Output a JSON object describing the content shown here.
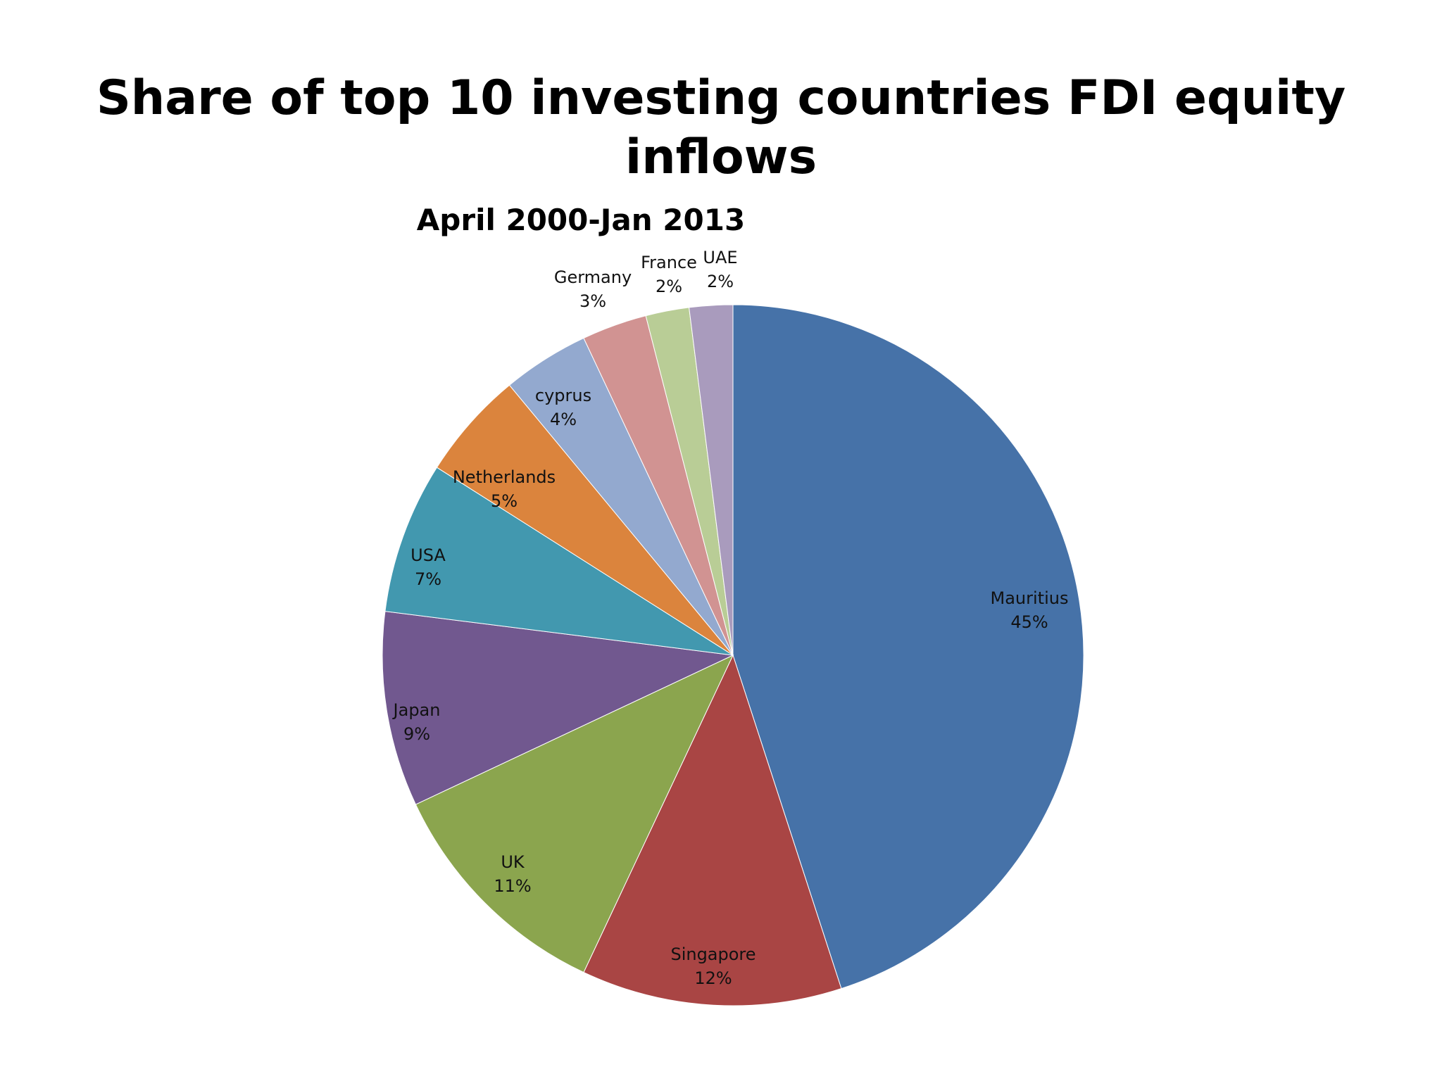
{
  "slide": {
    "title": "Share of top 10 investing countries FDI equity inflows"
  },
  "chart_data": {
    "type": "pie",
    "title": "April  2000-Jan 2013",
    "legend": "none",
    "data_labels": "category name and percentage",
    "start_angle": "12 o'clock, clockwise",
    "slices": [
      {
        "label": "Mauritius",
        "value": 45,
        "display": "45%",
        "color": "#4672A8"
      },
      {
        "label": "Singapore",
        "value": 12,
        "display": "12%",
        "color": "#A94544"
      },
      {
        "label": "UK",
        "value": 11,
        "display": "11%",
        "color": "#8BA54E"
      },
      {
        "label": "Japan",
        "value": 9,
        "display": "9%",
        "color": "#71588F"
      },
      {
        "label": "USA",
        "value": 7,
        "display": "7%",
        "color": "#4298AF"
      },
      {
        "label": "Netherlands",
        "value": 5,
        "display": "5%",
        "color": "#DB843D"
      },
      {
        "label": "cyprus",
        "value": 4,
        "display": "4%",
        "color": "#93A9CF"
      },
      {
        "label": "Germany",
        "value": 3,
        "display": "3%",
        "color": "#D19392"
      },
      {
        "label": "France",
        "value": 2,
        "display": "2%",
        "color": "#B9CD96"
      },
      {
        "label": "UAE",
        "value": 2,
        "display": "2%",
        "color": "#A99BBD"
      }
    ]
  }
}
